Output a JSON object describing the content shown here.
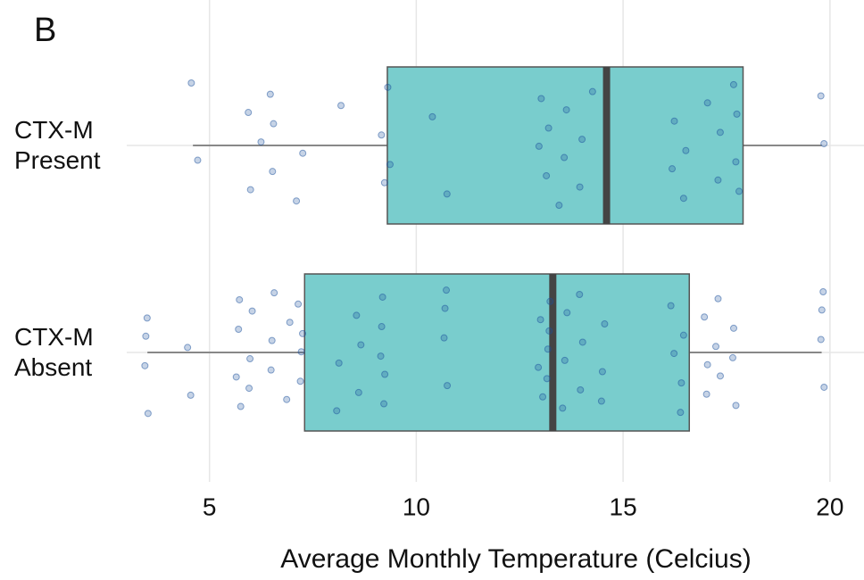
{
  "chart_data": {
    "type": "boxplot",
    "panel_label": "B",
    "xlabel": "Average Monthly Temperature (Celcius)",
    "categories": [
      "CTX-M Present",
      "CTX-M Absent"
    ],
    "boxes": [
      {
        "min": 4.6,
        "q1": 9.3,
        "median": 14.6,
        "q3": 17.9,
        "max": 19.8,
        "points": [
          4.6,
          4.7,
          6.0,
          6.0,
          6.2,
          6.5,
          6.5,
          6.6,
          7.1,
          7.2,
          8.2,
          9.2,
          9.2,
          9.3,
          9.3,
          10.4,
          10.7,
          13.0,
          13.0,
          13.2,
          13.2,
          13.4,
          13.6,
          13.6,
          14.0,
          14.0,
          14.2,
          16.2,
          16.2,
          16.5,
          16.5,
          17.1,
          17.3,
          17.3,
          17.7,
          17.7,
          17.8,
          17.8,
          19.8,
          19.8
        ]
      },
      {
        "min": 3.5,
        "q1": 7.3,
        "median": 13.3,
        "q3": 16.6,
        "max": 19.8,
        "points": [
          3.5,
          3.5,
          3.5,
          3.5,
          4.5,
          4.5,
          5.7,
          5.7,
          5.7,
          5.7,
          6.0,
          6.0,
          6.0,
          6.5,
          6.5,
          6.5,
          6.9,
          6.9,
          7.2,
          7.2,
          7.2,
          7.2,
          8.1,
          8.1,
          8.6,
          8.6,
          8.6,
          9.2,
          9.2,
          9.2,
          9.2,
          9.2,
          10.7,
          10.7,
          10.7,
          10.7,
          13.0,
          13.0,
          13.0,
          13.2,
          13.2,
          13.2,
          13.2,
          13.6,
          13.6,
          13.6,
          14.0,
          14.0,
          14.0,
          14.5,
          14.5,
          14.5,
          16.2,
          16.2,
          16.4,
          16.4,
          16.4,
          17.0,
          17.0,
          17.0,
          17.3,
          17.3,
          17.3,
          17.7,
          17.7,
          17.7,
          19.8,
          19.8,
          19.8,
          19.8
        ]
      }
    ],
    "box_color": "#79cdcd",
    "point_color": "#1a4f9c",
    "xlim": [
      3,
      20.5
    ],
    "xticks": [
      5,
      10,
      15,
      20
    ],
    "grid": true
  }
}
